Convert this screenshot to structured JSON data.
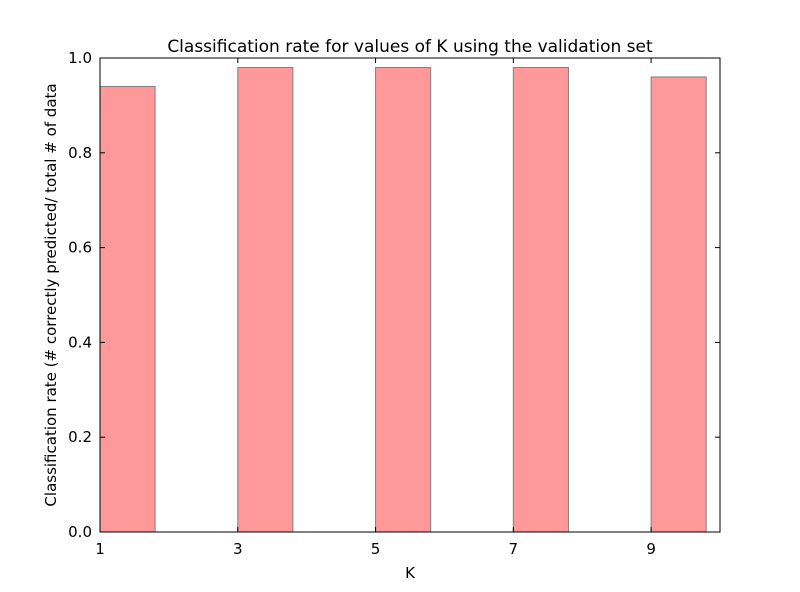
{
  "chart_data": {
    "type": "bar",
    "title": "Classification rate for values of K using the validation set",
    "xlabel": "K",
    "ylabel": "Classification rate (# correctly predicted/ total # of data",
    "x": [
      1,
      3,
      5,
      7,
      9
    ],
    "values": [
      0.94,
      0.98,
      0.98,
      0.98,
      0.96
    ],
    "bar_width": 0.8,
    "xlim": [
      1,
      10
    ],
    "ylim": [
      0.0,
      1.0
    ],
    "xticks": [
      "1",
      "3",
      "5",
      "7",
      "9"
    ],
    "yticks": [
      "0.0",
      "0.2",
      "0.4",
      "0.6",
      "0.8",
      "1.0"
    ],
    "grid": false,
    "bar_color": "#ff9999",
    "bar_edge_color": "#808080"
  }
}
